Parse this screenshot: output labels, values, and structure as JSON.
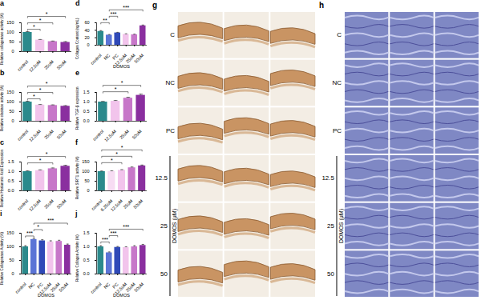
{
  "chart_data": [
    {
      "panel": "a",
      "type": "bar",
      "ylabel": "Relative collagenase activity (%)",
      "categories": [
        "control",
        "12.5uM",
        "25uM",
        "50uM"
      ],
      "values": [
        100,
        60,
        52,
        48
      ],
      "errors": [
        4,
        3,
        3,
        4
      ],
      "colors": [
        "#2b8a8c",
        "#f2c4ec",
        "#c777c9",
        "#8a2f9f"
      ],
      "ylim": [
        0,
        150
      ],
      "yticks": [
        0,
        50,
        100,
        150
      ],
      "annotations": [
        {
          "from": 0,
          "to": 1,
          "label": "*"
        },
        {
          "from": 0,
          "to": 2,
          "label": "*"
        },
        {
          "from": 0,
          "to": 3,
          "label": "*"
        }
      ]
    },
    {
      "panel": "b",
      "type": "bar",
      "ylabel": "Relative elastase activity (%)",
      "categories": [
        "control",
        "12.5uM",
        "25uM",
        "50uM"
      ],
      "values": [
        100,
        84,
        82,
        78
      ],
      "errors": [
        4,
        3,
        3,
        3
      ],
      "colors": [
        "#2b8a8c",
        "#f2c4ec",
        "#c777c9",
        "#8a2f9f"
      ],
      "ylim": [
        0,
        150
      ],
      "yticks": [
        0,
        50,
        100,
        150
      ],
      "annotations": [
        {
          "from": 0,
          "to": 1,
          "label": "*"
        },
        {
          "from": 0,
          "to": 2,
          "label": "*"
        },
        {
          "from": 0,
          "to": 3,
          "label": "*"
        }
      ]
    },
    {
      "panel": "c",
      "type": "bar",
      "ylabel": "Relative Hyaluronic Acid Expression",
      "categories": [
        "control",
        "12.5uM",
        "25uM",
        "50uM"
      ],
      "values": [
        1.0,
        1.05,
        1.15,
        1.28
      ],
      "errors": [
        0.04,
        0.04,
        0.04,
        0.05
      ],
      "colors": [
        "#2b8a8c",
        "#f2c4ec",
        "#c777c9",
        "#8a2f9f"
      ],
      "ylim": [
        0,
        1.5
      ],
      "yticks": [
        {
          "value": 0,
          "label": "0.0"
        },
        0.5,
        {
          "value": 1,
          "label": "1.0"
        },
        1.5
      ],
      "annotations": [
        {
          "from": 0,
          "to": 2,
          "label": "*"
        },
        {
          "from": 0,
          "to": 3,
          "label": "*"
        }
      ]
    },
    {
      "panel": "d",
      "type": "bar",
      "ylabel": "Collagen Content (ng/mL)",
      "xlabel": "DOMOS",
      "categories": [
        "control",
        "NC",
        "PC",
        "12.5uM",
        "25uM",
        "50uM"
      ],
      "values": [
        37,
        27,
        33,
        29,
        28,
        52
      ],
      "errors": [
        2,
        1.5,
        1.5,
        1.5,
        1.5,
        2
      ],
      "colors": [
        "#2b8a8c",
        "#5b74d6",
        "#2f49b8",
        "#f2c4ec",
        "#c777c9",
        "#8a2f9f"
      ],
      "ylim": [
        0,
        60
      ],
      "yticks": [
        0,
        20,
        40,
        60
      ],
      "annotations": [
        {
          "from": 0,
          "to": 1,
          "label": "**"
        },
        {
          "from": 1,
          "to": 2,
          "label": "***"
        },
        {
          "from": 1,
          "to": 5,
          "label": "***"
        }
      ]
    },
    {
      "panel": "e",
      "type": "bar",
      "ylabel": "Relative TGF-β expression",
      "categories": [
        "control",
        "12.5uM",
        "25uM",
        "50uM"
      ],
      "values": [
        1.0,
        1.04,
        1.2,
        1.35
      ],
      "errors": [
        0.03,
        0.04,
        0.05,
        0.06
      ],
      "colors": [
        "#2b8a8c",
        "#f2c4ec",
        "#c777c9",
        "#8a2f9f"
      ],
      "ylim": [
        0,
        1.5
      ],
      "yticks": [
        {
          "value": 0,
          "label": "0.0"
        },
        0.5,
        {
          "value": 1,
          "label": "1.0"
        },
        1.5
      ],
      "annotations": [
        {
          "from": 0,
          "to": 2,
          "label": "*"
        },
        {
          "from": 0,
          "to": 3,
          "label": "*"
        }
      ]
    },
    {
      "panel": "f",
      "type": "bar",
      "ylabel": "Relative SIRT1 activity (%)",
      "categories": [
        "control",
        "6.25uM",
        "12.5uM",
        "25uM",
        "50uM"
      ],
      "values": [
        100,
        101,
        107,
        120,
        130
      ],
      "errors": [
        3,
        3,
        3,
        4,
        4
      ],
      "colors": [
        "#2b8a8c",
        "#f7dcf3",
        "#f2c4ec",
        "#c777c9",
        "#8a2f9f"
      ],
      "ylim": [
        0,
        150
      ],
      "yticks": [
        0,
        50,
        100,
        150
      ],
      "annotations": [
        {
          "from": 0,
          "to": 2,
          "label": "*"
        },
        {
          "from": 0,
          "to": 3,
          "label": "*"
        },
        {
          "from": 0,
          "to": 4,
          "label": "*"
        }
      ]
    },
    {
      "panel": "i",
      "type": "bar",
      "ylabel": "Relative Collagenase Activity (%)",
      "xlabel": "DOMOS",
      "categories": [
        "control",
        "NC",
        "PC",
        "12.5uM",
        "25uM",
        "50uM"
      ],
      "values": [
        100,
        127,
        122,
        118,
        120,
        106
      ],
      "errors": [
        4,
        4,
        4,
        4,
        4,
        4
      ],
      "colors": [
        "#2b8a8c",
        "#5b74d6",
        "#2f49b8",
        "#f2c4ec",
        "#c777c9",
        "#8a2f9f"
      ],
      "ylim": [
        0,
        150
      ],
      "yticks": [
        0,
        50,
        100,
        150
      ],
      "annotations": [
        {
          "from": 0,
          "to": 1,
          "label": "***"
        },
        {
          "from": 1,
          "to": 2,
          "label": "*"
        },
        {
          "from": 1,
          "to": 5,
          "label": "***"
        }
      ]
    },
    {
      "panel": "j",
      "type": "bar",
      "ylabel": "Relative Collagen Activity (%)",
      "xlabel": "DOMOS",
      "categories": [
        "control",
        "NC",
        "PC",
        "12.5uM",
        "25uM",
        "50uM"
      ],
      "values": [
        1.0,
        0.78,
        0.98,
        0.97,
        1.0,
        1.05
      ],
      "errors": [
        0.04,
        0.03,
        0.03,
        0.03,
        0.04,
        0.04
      ],
      "colors": [
        "#2b8a8c",
        "#5b74d6",
        "#2f49b8",
        "#f2c4ec",
        "#c777c9",
        "#8a2f9f"
      ],
      "ylim": [
        0,
        1.5
      ],
      "yticks": [
        {
          "value": 0,
          "label": "0.0"
        },
        0.5,
        {
          "value": 1,
          "label": "1.0"
        },
        1.5
      ],
      "annotations": [
        {
          "from": 0,
          "to": 1,
          "label": "***"
        },
        {
          "from": 1,
          "to": 2,
          "label": "***"
        },
        {
          "from": 1,
          "to": 5,
          "label": "***"
        }
      ]
    }
  ],
  "image_panels": [
    {
      "panel": "g",
      "rows": [
        "C",
        "NC",
        "PC",
        "12.5",
        "25",
        "50"
      ],
      "group_label": "DOMOS (μM)",
      "group_start": 3,
      "columns": 3
    },
    {
      "panel": "h",
      "rows": [
        "C",
        "NC",
        "PC",
        "12.5",
        "25",
        "50"
      ],
      "group_label": "DOMOS (μM)",
      "group_start": 3,
      "columns": 3
    }
  ]
}
